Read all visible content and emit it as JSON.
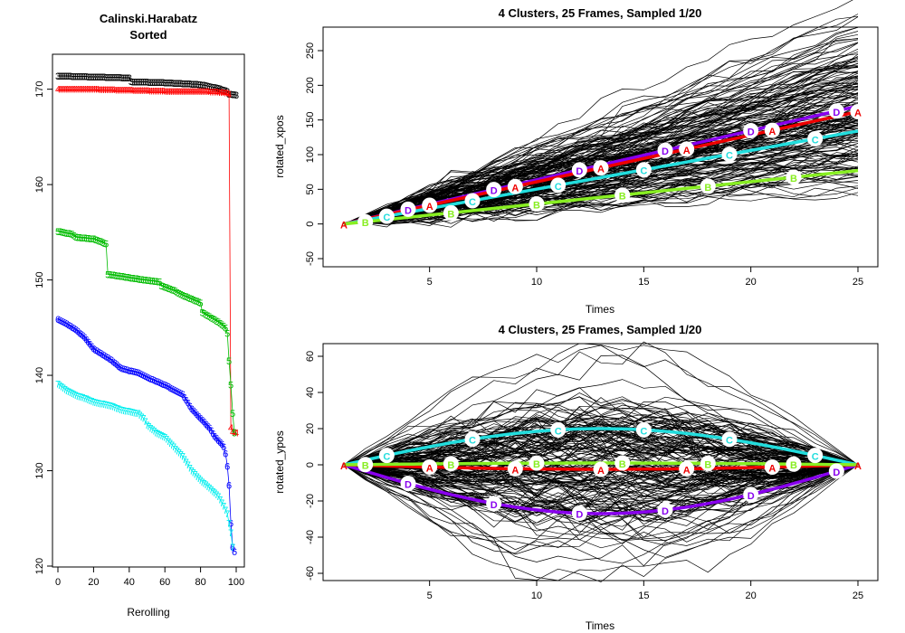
{
  "chart_data": [
    {
      "type": "scatter",
      "title": [
        "Calinski.Harabatz",
        "Sorted"
      ],
      "xlabel": "Rerolling",
      "ylabel": "",
      "xlim": [
        0,
        100
      ],
      "ylim": [
        120,
        173
      ],
      "xticks": [
        "0",
        "20",
        "40",
        "60",
        "80",
        "100"
      ],
      "yticks": [
        "120",
        "130",
        "140",
        "150",
        "160",
        "170"
      ],
      "grid": false,
      "series": [
        {
          "marker": "3",
          "color": "#000000",
          "points": [
            [
              0,
              171.4
            ],
            [
              20,
              171.3
            ],
            [
              40,
              171.2
            ],
            [
              41,
              170.8
            ],
            [
              60,
              170.7
            ],
            [
              80,
              170.5
            ],
            [
              90,
              170.1
            ],
            [
              95,
              169.8
            ],
            [
              96,
              169.5
            ],
            [
              100,
              169.4
            ]
          ]
        },
        {
          "marker": "4",
          "color": "#ff0000",
          "points": [
            [
              0,
              170.0
            ],
            [
              20,
              170.0
            ],
            [
              40,
              169.9
            ],
            [
              60,
              169.8
            ],
            [
              80,
              169.8
            ],
            [
              90,
              169.7
            ],
            [
              95,
              169.6
            ],
            [
              96,
              169.5
            ],
            [
              97,
              134.5
            ],
            [
              98,
              134.1
            ],
            [
              100,
              134.0
            ]
          ]
        },
        {
          "marker": "5",
          "color": "#00bb00",
          "points": [
            [
              0,
              155.1
            ],
            [
              8,
              154.8
            ],
            [
              10,
              154.5
            ],
            [
              20,
              154.3
            ],
            [
              27,
              153.8
            ],
            [
              28,
              150.6
            ],
            [
              35,
              150.4
            ],
            [
              45,
              150.1
            ],
            [
              57,
              149.8
            ],
            [
              58,
              149.4
            ],
            [
              65,
              148.9
            ],
            [
              70,
              148.4
            ],
            [
              80,
              147.6
            ],
            [
              81,
              146.6
            ],
            [
              90,
              145.6
            ],
            [
              94,
              145.0
            ],
            [
              95,
              144.4
            ],
            [
              96,
              141.5
            ],
            [
              97,
              139.0
            ],
            [
              98,
              136.0
            ],
            [
              99,
              134.0
            ]
          ]
        },
        {
          "marker": "6",
          "color": "#0000ff",
          "points": [
            [
              0,
              145.9
            ],
            [
              5,
              145.4
            ],
            [
              10,
              144.8
            ],
            [
              15,
              144.0
            ],
            [
              20,
              142.8
            ],
            [
              25,
              142.2
            ],
            [
              30,
              141.6
            ],
            [
              35,
              140.8
            ],
            [
              40,
              140.5
            ],
            [
              45,
              140.3
            ],
            [
              50,
              139.8
            ],
            [
              55,
              139.4
            ],
            [
              60,
              139.0
            ],
            [
              65,
              138.5
            ],
            [
              70,
              138.0
            ],
            [
              75,
              136.5
            ],
            [
              80,
              135.5
            ],
            [
              85,
              134.5
            ],
            [
              88,
              133.6
            ],
            [
              90,
              133.2
            ],
            [
              92,
              132.8
            ],
            [
              93,
              132.5
            ],
            [
              94,
              131.8
            ],
            [
              95,
              130.5
            ],
            [
              96,
              128.5
            ],
            [
              97,
              124.5
            ],
            [
              98,
              122.0
            ],
            [
              99,
              121.5
            ]
          ]
        },
        {
          "marker": "7",
          "color": "#00eeee",
          "points": [
            [
              0,
              139.1
            ],
            [
              5,
              138.4
            ],
            [
              10,
              137.9
            ],
            [
              15,
              137.6
            ],
            [
              20,
              137.2
            ],
            [
              25,
              137.0
            ],
            [
              30,
              136.8
            ],
            [
              35,
              136.4
            ],
            [
              40,
              136.2
            ],
            [
              45,
              136.0
            ],
            [
              48,
              135.5
            ],
            [
              50,
              134.8
            ],
            [
              55,
              134.0
            ],
            [
              60,
              133.5
            ],
            [
              65,
              132.5
            ],
            [
              70,
              131.5
            ],
            [
              75,
              130.0
            ],
            [
              80,
              129.0
            ],
            [
              85,
              128.2
            ],
            [
              90,
              127.3
            ],
            [
              93,
              126.3
            ],
            [
              95,
              125.5
            ],
            [
              97,
              123.5
            ],
            [
              98,
              122.0
            ]
          ]
        }
      ]
    },
    {
      "type": "line",
      "title": "4 Clusters, 25 Frames, Sampled 1/20",
      "xlabel": "Times",
      "ylabel": "rotated_xpos",
      "xlim": [
        1,
        25
      ],
      "ylim": [
        -50,
        260
      ],
      "xticks": [
        "5",
        "10",
        "15",
        "20",
        "25"
      ],
      "yticks": [
        "-50",
        "0",
        "50",
        "100",
        "150",
        "200",
        "250"
      ],
      "grid": false,
      "background_traces_color": "#000000",
      "clusters": [
        {
          "label": "A",
          "color": "#ee0000",
          "x": [
            1,
            25
          ],
          "y": [
            0,
            162
          ]
        },
        {
          "label": "B",
          "color": "#88ee22",
          "x": [
            1,
            25
          ],
          "y": [
            0,
            77
          ]
        },
        {
          "label": "C",
          "color": "#22dddd",
          "x": [
            1,
            25
          ],
          "y": [
            0,
            134
          ]
        },
        {
          "label": "D",
          "color": "#8800ee",
          "x": [
            1,
            25
          ],
          "y": [
            0,
            170
          ]
        }
      ],
      "marker_frames": {
        "A": [
          1,
          5,
          9,
          13,
          17,
          21,
          25
        ],
        "B": [
          2,
          6,
          10,
          14,
          18,
          22
        ],
        "C": [
          3,
          7,
          11,
          15,
          19,
          23
        ],
        "D": [
          4,
          8,
          12,
          16,
          20,
          24
        ]
      }
    },
    {
      "type": "line",
      "title": "4 Clusters, 25 Frames, Sampled 1/20",
      "xlabel": "Times",
      "ylabel": "rotated_ypos",
      "xlim": [
        1,
        25
      ],
      "ylim": [
        -63,
        66
      ],
      "xticks": [
        "5",
        "10",
        "15",
        "20",
        "25"
      ],
      "yticks": [
        "-60",
        "-40",
        "-20",
        "0",
        "20",
        "40",
        "60"
      ],
      "grid": false,
      "background_traces_color": "#000000",
      "clusters": [
        {
          "label": "A",
          "color": "#ee0000",
          "amplitude": -2.5
        },
        {
          "label": "B",
          "color": "#88ee22",
          "amplitude": 1
        },
        {
          "label": "C",
          "color": "#22dddd",
          "amplitude": 20
        },
        {
          "label": "D",
          "color": "#8800ee",
          "amplitude": -27
        }
      ],
      "marker_frames": {
        "A": [
          1,
          5,
          9,
          13,
          17,
          21,
          25
        ],
        "B": [
          2,
          6,
          10,
          14,
          18,
          22
        ],
        "C": [
          3,
          7,
          11,
          15,
          19,
          23
        ],
        "D": [
          4,
          8,
          12,
          16,
          20,
          24
        ]
      }
    }
  ]
}
